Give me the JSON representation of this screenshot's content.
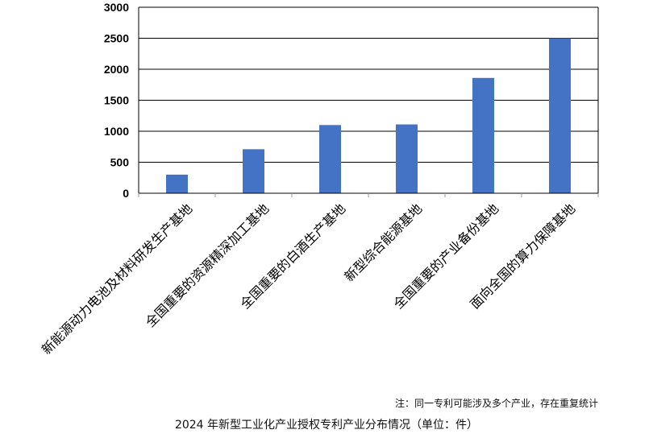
{
  "chart_data": {
    "type": "bar",
    "categories": [
      "新能源动力电池及材料研发生产基地",
      "全国重要的资源精深加工基地",
      "全国重要的白酒生产基地",
      "新型综合能源基地",
      "全国重要的产业备份基地",
      "面向全国的算力保障基地"
    ],
    "values": [
      300,
      710,
      1100,
      1110,
      1860,
      2500
    ],
    "ylim": [
      0,
      3000
    ],
    "yticks": [
      0,
      500,
      1000,
      1500,
      2000,
      2500,
      3000
    ],
    "grid": true,
    "bar_color": "#4472C4"
  },
  "note": "注：同一专利可能涉及多个产业，存在重复统计",
  "caption": "2024 年新型工业化产业授权专利产业分布情况（单位：件）"
}
